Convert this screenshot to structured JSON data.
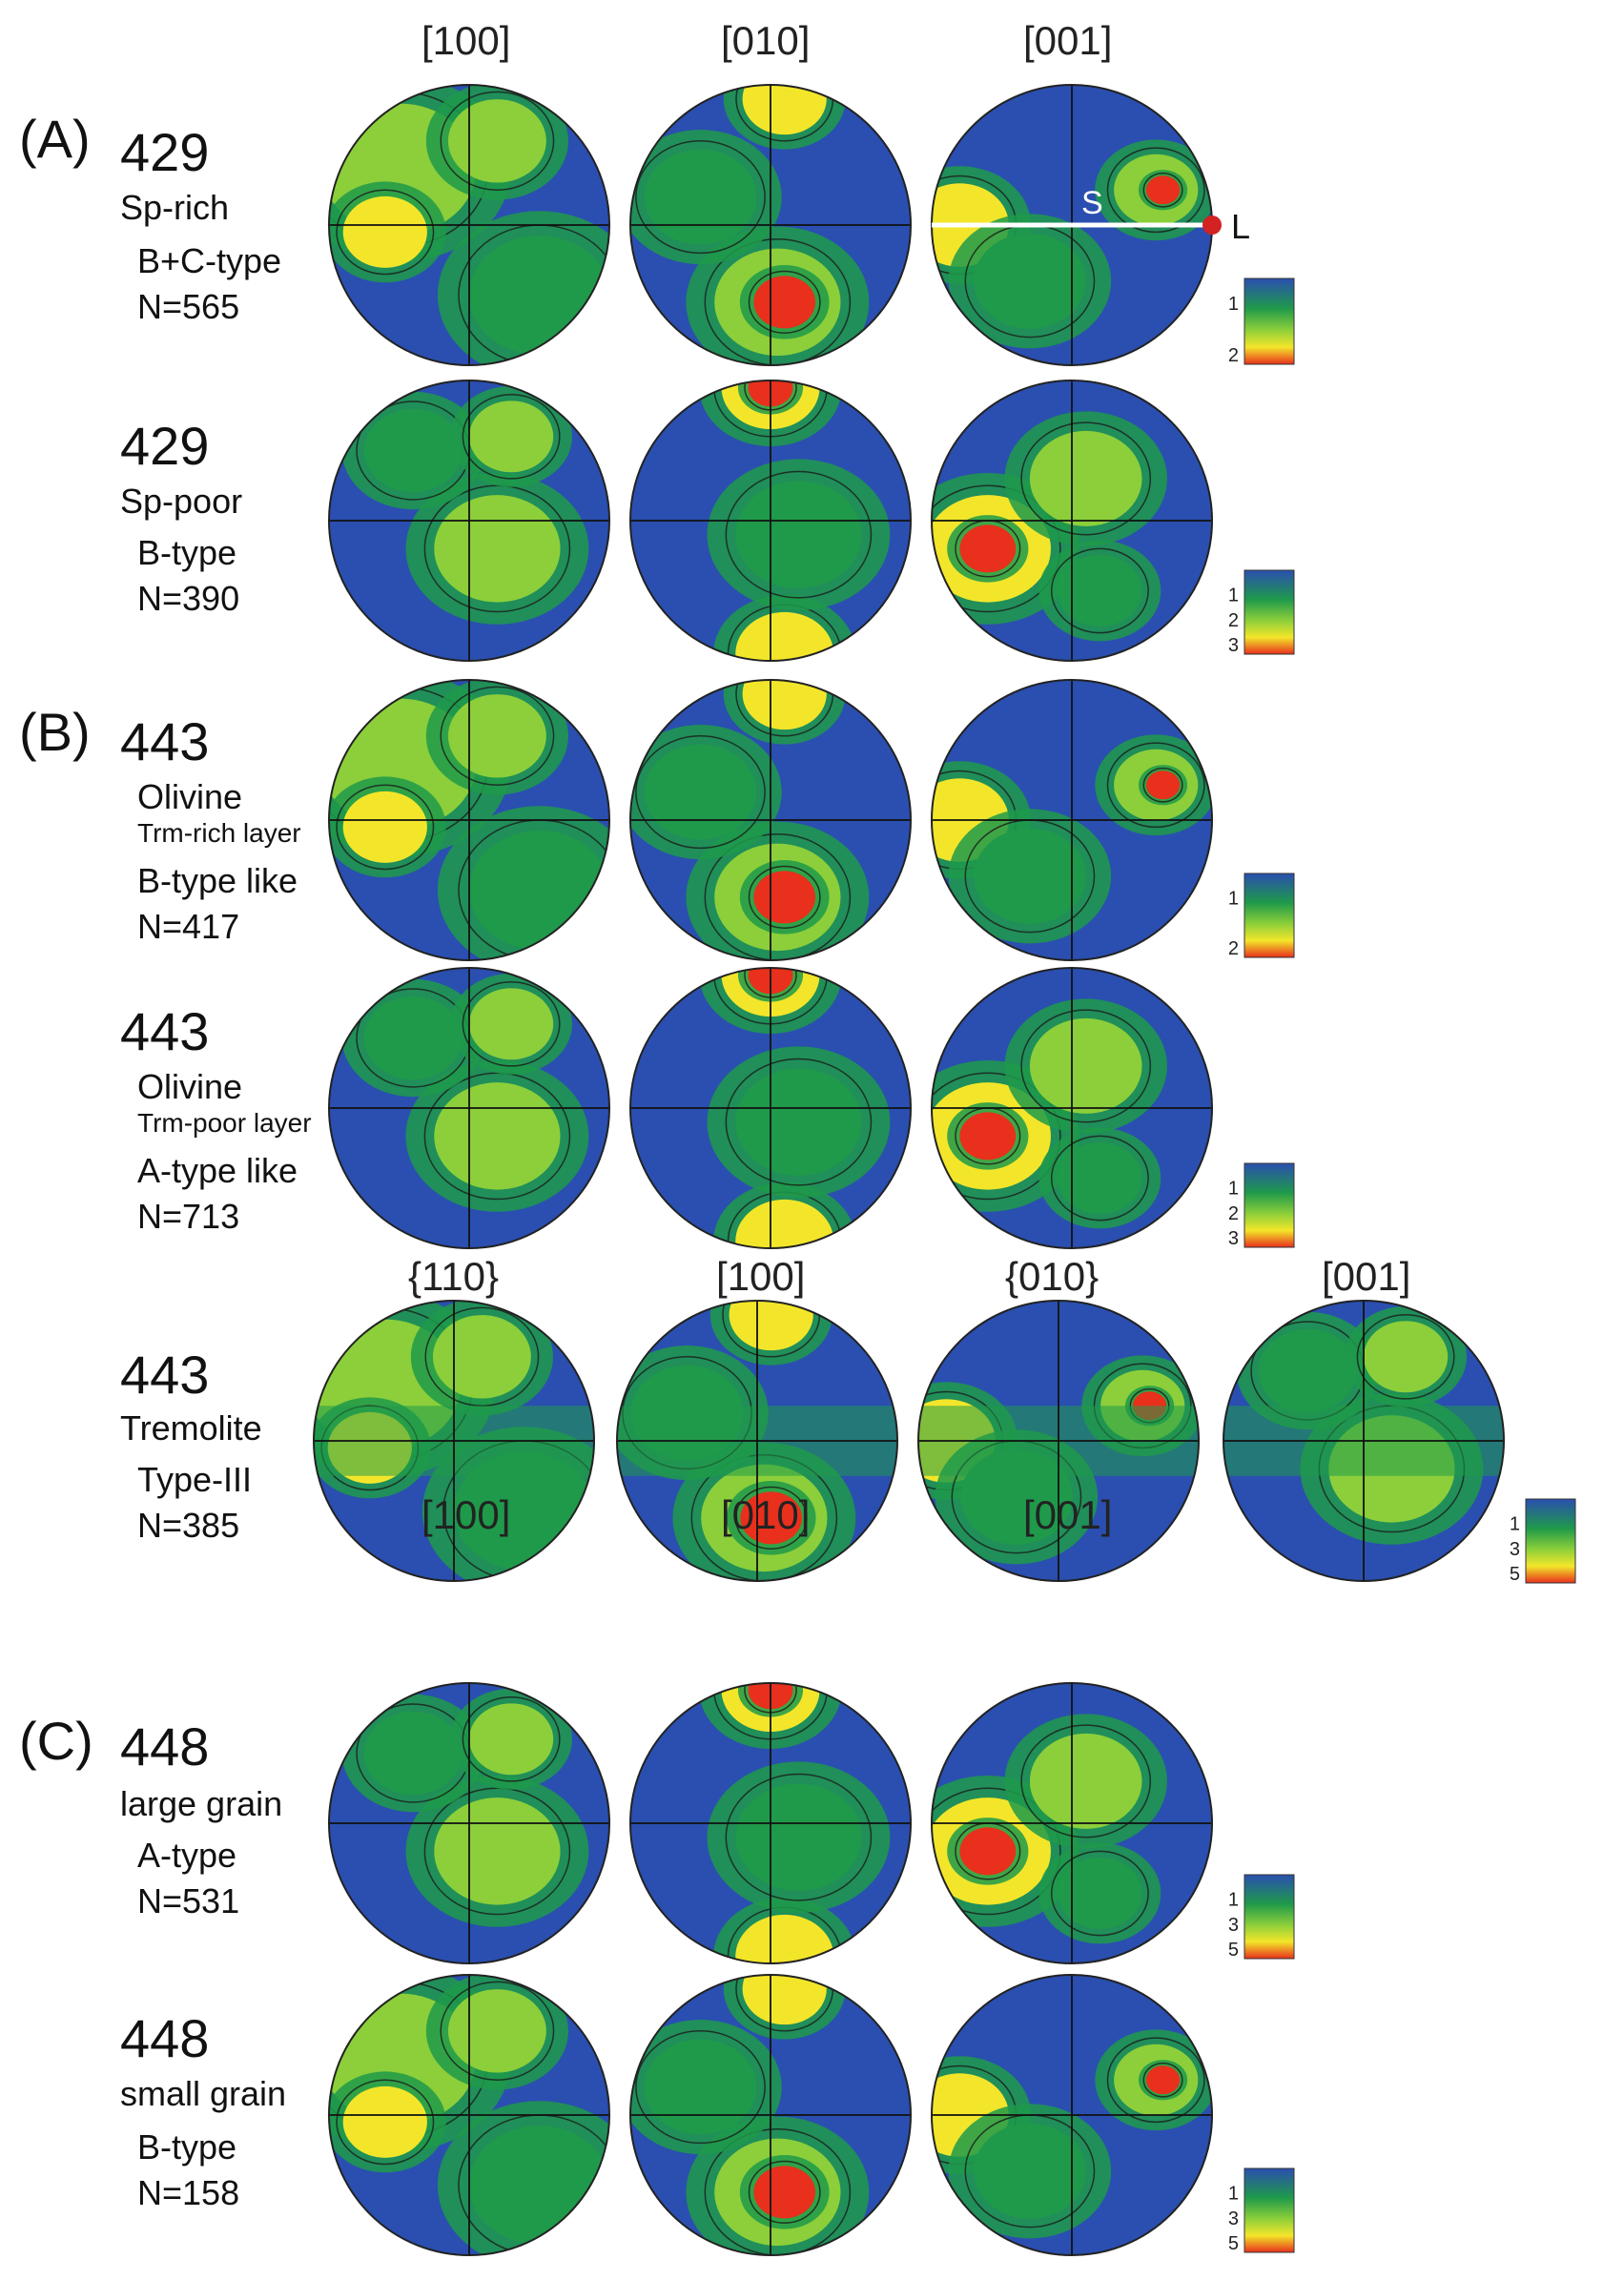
{
  "figure": {
    "col_headers_olivine": [
      "[100]",
      "[010]",
      "[001]"
    ],
    "col_headers_tremolite": [
      "{110}",
      "[100]",
      "{010}",
      "[001]"
    ],
    "panels": {
      "A": "(A)",
      "B": "(B)",
      "C": "(C)"
    },
    "overlay": {
      "s_label": "S",
      "l_label": "L"
    },
    "colors": {
      "low": "#2a4fb0",
      "mid": "#1f9a4a",
      "light": "#8ccf3a",
      "high": "#f3e62a",
      "peak": "#e8301c",
      "contour": "#1a1a1a",
      "marker": "#d22222"
    },
    "samples": [
      {
        "id": "429",
        "desc": [
          "Sp-rich"
        ],
        "type": "B+C-type",
        "n": "N=565",
        "scale": [
          "1",
          "2"
        ],
        "pole_figures": [
          "[100]",
          "[010]",
          "[001]"
        ]
      },
      {
        "id": "429",
        "desc": [
          "Sp-poor"
        ],
        "type": "B-type",
        "n": "N=390",
        "scale": [
          "1",
          "2",
          "3"
        ],
        "pole_figures": [
          "[100]",
          "[010]",
          "[001]"
        ]
      },
      {
        "id": "443",
        "desc": [
          "Olivine",
          "Trm-rich layer"
        ],
        "type": "B-type like",
        "n": "N=417",
        "scale": [
          "1",
          "2"
        ],
        "pole_figures": [
          "[100]",
          "[010]",
          "[001]"
        ]
      },
      {
        "id": "443",
        "desc": [
          "Olivine",
          "Trm-poor layer"
        ],
        "type": "A-type like",
        "n": "N=713",
        "scale": [
          "1",
          "2",
          "3"
        ],
        "pole_figures": [
          "[100]",
          "[010]",
          "[001]"
        ]
      },
      {
        "id": "443",
        "desc": [
          "Tremolite"
        ],
        "type": "Type-III",
        "n": "N=385",
        "scale": [
          "1",
          "3",
          "5"
        ],
        "pole_figures": [
          "{110}",
          "[100]",
          "{010}",
          "[001]"
        ]
      },
      {
        "id": "448",
        "desc": [
          "large grain"
        ],
        "type": "A-type",
        "n": "N=531",
        "scale": [
          "1",
          "3",
          "5"
        ],
        "pole_figures": [
          "[100]",
          "[010]",
          "[001]"
        ]
      },
      {
        "id": "448",
        "desc": [
          "small grain"
        ],
        "type": "B-type",
        "n": "N=158",
        "scale": [
          "1",
          "3",
          "5"
        ],
        "pole_figures": [
          "[100]",
          "[010]",
          "[001]"
        ]
      }
    ]
  }
}
